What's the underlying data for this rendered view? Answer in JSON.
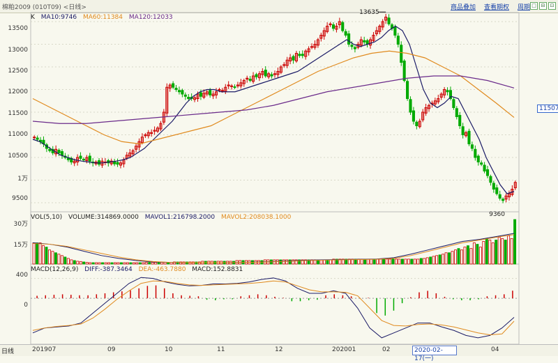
{
  "titlebar": {
    "title": "棉粕2009 (010T09) <日线>",
    "links": [
      "商品叠加",
      "查看期权",
      "周期"
    ],
    "window_buttons": [
      "□",
      "⊟",
      "⊡"
    ]
  },
  "main_chart": {
    "legend": [
      {
        "text": "K",
        "color": "#222222"
      },
      {
        "text": "MA10:9746",
        "color": "#1a1a66"
      },
      {
        "text": "MA60:11384",
        "color": "#e08a1e"
      },
      {
        "text": "MA120:12033",
        "color": "#6a2a8a"
      }
    ],
    "y_labels": [
      "13500",
      "13000",
      "12500",
      "12000",
      "11500",
      "11000",
      "10500",
      "1万",
      "9500"
    ],
    "y_values": [
      13500,
      13000,
      12500,
      12000,
      11500,
      11000,
      10500,
      10000,
      9500
    ],
    "high_label": "13635",
    "low_label": "9360",
    "current_price_box": "11507"
  },
  "volume_chart": {
    "legend": [
      {
        "text": "VOL(5,10)",
        "color": "#222222"
      },
      {
        "text": "VOLUME:314869.0000",
        "color": "#222222"
      },
      {
        "text": "MAVOL1:216798.2000",
        "color": "#1a1a66"
      },
      {
        "text": "MAVOL2:208038.1000",
        "color": "#e08a1e"
      }
    ],
    "y_labels": [
      "30万",
      "15万"
    ]
  },
  "macd_chart": {
    "legend": [
      {
        "text": "MACD(12,26,9)",
        "color": "#222222"
      },
      {
        "text": "DIFF:-387.3464",
        "color": "#1a1a66"
      },
      {
        "text": "DEA:-463.7880",
        "color": "#e08a1e"
      },
      {
        "text": "MACD:152.8831",
        "color": "#222222"
      }
    ],
    "y_labels": [
      "400",
      "0"
    ]
  },
  "x_axis": {
    "period_label": "日线",
    "labels": [
      "201907",
      "09",
      "10",
      "11",
      "12",
      "202001",
      "02",
      "03",
      "04"
    ]
  },
  "date_input": "2020-02-17(一)",
  "colors": {
    "up": "#cc0000",
    "down": "#00aa00",
    "ma10": "#1a1a66",
    "ma60": "#e08a1e",
    "ma120": "#6a2a8a"
  },
  "chart_data": [
    {
      "type": "candlestick",
      "title": "棉粕2009 (010T09) <日线>",
      "ylim": [
        9300,
        13700
      ],
      "close": [
        10950,
        10900,
        10850,
        10800,
        10700,
        10650,
        10600,
        10680,
        10600,
        10550,
        10500,
        10450,
        10400,
        10420,
        10500,
        10480,
        10450,
        10500,
        10420,
        10380,
        10400,
        10350,
        10420,
        10400,
        10380,
        10420,
        10360,
        10350,
        10380,
        10450,
        10550,
        10600,
        10650,
        10750,
        10850,
        10950,
        11000,
        11050,
        11050,
        11100,
        11150,
        11250,
        11500,
        12050,
        12100,
        12050,
        12000,
        11950,
        11900,
        11850,
        11800,
        11800,
        11820,
        11900,
        11850,
        11920,
        11950,
        11880,
        11900,
        11950,
        12000,
        11980,
        12050,
        12100,
        12080,
        12050,
        12100,
        12150,
        12200,
        12250,
        12200,
        12300,
        12280,
        12350,
        12400,
        12300,
        12350,
        12300,
        12350,
        12400,
        12500,
        12550,
        12650,
        12700,
        12650,
        12800,
        12750,
        12750,
        12850,
        12900,
        12950,
        13000,
        13100,
        13200,
        13300,
        13400,
        13450,
        13350,
        13400,
        13500,
        13300,
        13200,
        13000,
        12950,
        12900,
        13000,
        13100,
        13050,
        13000,
        13100,
        13200,
        13300,
        13400,
        13500,
        13600,
        13450,
        13350,
        13200,
        13000,
        12600,
        12200,
        11800,
        11500,
        11300,
        11200,
        11300,
        11500,
        11600,
        11650,
        11700,
        11750,
        11800,
        11900,
        12000,
        11950,
        11800,
        11600,
        11400,
        11200,
        11000,
        11050,
        10800,
        10700,
        10500,
        10400,
        10350,
        10200,
        10100,
        9950,
        9800,
        9700,
        9600,
        9550,
        9650,
        9700,
        9800,
        9950
      ],
      "series": [
        {
          "name": "MA10",
          "values": [
            10900,
            10850,
            10750,
            10650,
            10550,
            10500,
            10450,
            10420,
            10400,
            10380,
            10380,
            10400,
            10420,
            10450,
            10500,
            10600,
            10700,
            10850,
            11000,
            11150,
            11300,
            11500,
            11700,
            11850,
            11950,
            12000,
            12000,
            11950,
            11950,
            11950,
            12000,
            12050,
            12100,
            12150,
            12200,
            12250,
            12300,
            12350,
            12400,
            12500,
            12600,
            12700,
            12800,
            12900,
            13000,
            13100,
            13000,
            12950,
            13000,
            13050,
            13150,
            13300,
            13400,
            13300,
            13000,
            12500,
            12000,
            11700,
            11600,
            11700,
            11850,
            11800,
            11500,
            11200,
            10900,
            10500,
            10200,
            9900,
            9700,
            9750
          ]
        },
        {
          "name": "MA60",
          "values": [
            11800,
            11600,
            11400,
            11200,
            11000,
            10850,
            10800,
            10900,
            11000,
            11100,
            11200,
            11400,
            11600,
            11800,
            12000,
            12200,
            12400,
            12550,
            12700,
            12800,
            12850,
            12800,
            12700,
            12500,
            12300,
            12000,
            11700,
            11384
          ]
        },
        {
          "name": "MA120",
          "values": [
            11300,
            11250,
            11250,
            11300,
            11350,
            11400,
            11450,
            11500,
            11550,
            11650,
            11800,
            11950,
            12050,
            12150,
            12250,
            12300,
            12300,
            12200,
            12033
          ]
        }
      ]
    },
    {
      "type": "bar",
      "title": "VOL(5,10)",
      "ylim": [
        0,
        320000
      ],
      "values": [
        150000,
        150000,
        150000,
        130000,
        120000,
        100000,
        90000,
        80000,
        70000,
        60000,
        50000,
        40000,
        30000,
        25000,
        20000,
        18000,
        15000,
        12000,
        10000,
        10000,
        10000,
        10000,
        10000,
        10000,
        10000,
        10000,
        10000,
        10000,
        10000,
        10000,
        10000,
        10000,
        10000,
        10000,
        10000,
        10000,
        12000,
        12000,
        12000,
        12000,
        12000,
        12000,
        12000,
        12000,
        12000,
        15000,
        15000,
        15000,
        15000,
        15000,
        15000,
        15000,
        15000,
        15000,
        20000,
        20000,
        20000,
        20000,
        20000,
        20000,
        20000,
        20000,
        20000,
        20000,
        20000,
        25000,
        25000,
        25000,
        25000,
        25000,
        25000,
        25000,
        25000,
        25000,
        30000,
        30000,
        30000,
        30000,
        30000,
        30000,
        30000,
        30000,
        30000,
        30000,
        30000,
        30000,
        30000,
        30000,
        30000,
        30000,
        30000,
        30000,
        30000,
        30000,
        30000,
        30000,
        35000,
        35000,
        35000,
        35000,
        35000,
        35000,
        35000,
        35000,
        35000,
        35000,
        35000,
        35000,
        35000,
        35000,
        35000,
        35000,
        35000,
        35000,
        35000,
        35000,
        35000,
        35000,
        35000,
        35000,
        35000,
        35000,
        35000,
        35000,
        40000,
        40000,
        45000,
        50000,
        55000,
        60000,
        65000,
        70000,
        80000,
        80000,
        90000,
        100000,
        110000,
        100000,
        120000,
        130000,
        110000,
        150000,
        140000,
        120000,
        160000,
        180000,
        170000,
        150000,
        170000,
        190000,
        180000,
        170000,
        200000,
        180000,
        314869
      ],
      "series": [
        {
          "name": "MAVOL1",
          "values": [
            150000,
            140000,
            120000,
            90000,
            60000,
            40000,
            25000,
            15000,
            12000,
            10000,
            10000,
            10000,
            12000,
            14000,
            18000,
            22000,
            28000,
            30000,
            32000,
            34000,
            36000,
            45000,
            70000,
            100000,
            130000,
            160000,
            175000,
            195000,
            216798
          ]
        },
        {
          "name": "MAVOL2",
          "values": [
            145000,
            140000,
            125000,
            100000,
            75000,
            50000,
            30000,
            18000,
            12000,
            10000,
            10000,
            10000,
            11000,
            13000,
            16000,
            20000,
            25000,
            28000,
            30000,
            32000,
            34000,
            40000,
            60000,
            90000,
            120000,
            150000,
            170000,
            190000,
            208038
          ]
        }
      ]
    },
    {
      "type": "macd",
      "title": "MACD(12,26,9)",
      "ylim": [
        -900,
        550
      ],
      "series": [
        {
          "name": "DIFF",
          "values": [
            -700,
            -600,
            -580,
            -560,
            -500,
            -300,
            -100,
            100,
            300,
            420,
            400,
            330,
            280,
            250,
            260,
            290,
            290,
            300,
            330,
            380,
            410,
            350,
            200,
            100,
            100,
            150,
            100,
            -200,
            -600,
            -800,
            -700,
            -600,
            -500,
            -500,
            -580,
            -650,
            -750,
            -800,
            -750,
            -600,
            -387
          ]
        },
        {
          "name": "DEA",
          "values": [
            -650,
            -600,
            -570,
            -550,
            -520,
            -400,
            -220,
            -20,
            150,
            300,
            350,
            340,
            300,
            270,
            260,
            270,
            280,
            290,
            300,
            320,
            350,
            330,
            250,
            170,
            130,
            130,
            120,
            50,
            -200,
            -450,
            -550,
            -560,
            -530,
            -520,
            -540,
            -580,
            -640,
            -700,
            -740,
            -720,
            -464
          ]
        },
        {
          "name": "MACD",
          "values": [
            50,
            60,
            70,
            80,
            70,
            60,
            60,
            80,
            100,
            120,
            140,
            160,
            200,
            250,
            260,
            200,
            100,
            60,
            50,
            40,
            -30,
            -40,
            -20,
            -20,
            40,
            60,
            80,
            60,
            30,
            10,
            -60,
            -60,
            -40,
            -30,
            60,
            80,
            60,
            40,
            10,
            10,
            -300,
            -350,
            -250,
            -100,
            20,
            120,
            150,
            100,
            30,
            -20,
            -40,
            -40,
            -20,
            40,
            60,
            80,
            153
          ]
        }
      ]
    }
  ]
}
